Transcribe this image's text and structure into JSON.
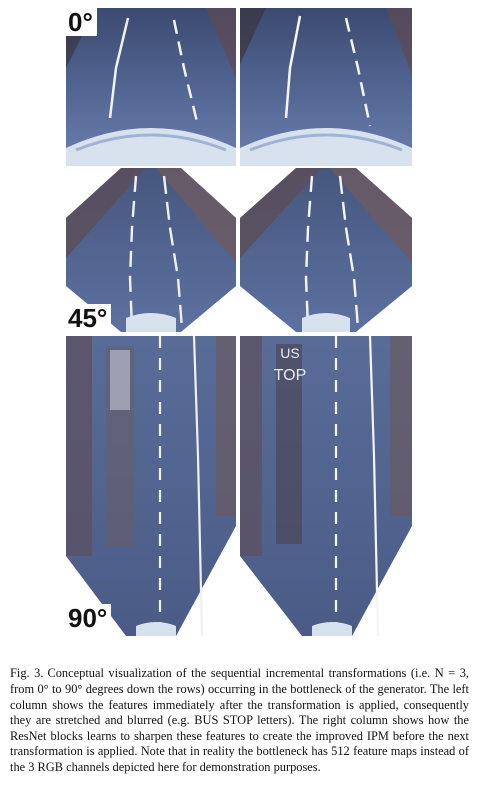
{
  "figure": {
    "rows": [
      {
        "angle_label": "0°"
      },
      {
        "angle_label": "45°"
      },
      {
        "angle_label": "90°"
      }
    ],
    "bus_stop_left": "",
    "bus_stop_right_line1": "US",
    "bus_stop_right_line2": "TOP"
  },
  "caption": {
    "label": "Fig. 3.",
    "text": "Conceptual visualization of the sequential incremental transformations (i.e. N = 3, from 0° to 90° degrees down the rows) occurring in the bottleneck of the generator. The left column shows the features immediately after the transformation is applied, consequently they are stretched and blurred (e.g. BUS STOP letters). The right column shows how the ResNet blocks learns to sharpen these features to create the improved IPM before the next transformation is applied. Note that in reality the bottleneck has 512 feature maps instead of the 3 RGB channels depicted here for demonstration purposes."
  },
  "colors": {
    "road": "#4a5a7e",
    "road_light": "#7282a8",
    "road_dark": "#2e3a58",
    "lane": "#f2f2f2",
    "side": "#6a5a60",
    "hood": "#d8e2ee"
  }
}
